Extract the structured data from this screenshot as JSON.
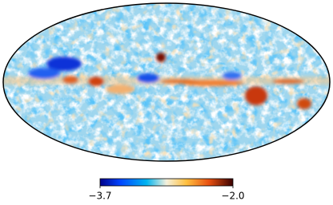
{
  "colorbar": {
    "range": [
      -3.7,
      -2.0
    ],
    "ticks": [
      {
        "value": -3.7,
        "label": "−3.7"
      },
      {
        "value": -2.0,
        "label": "−2.0"
      }
    ]
  }
}
